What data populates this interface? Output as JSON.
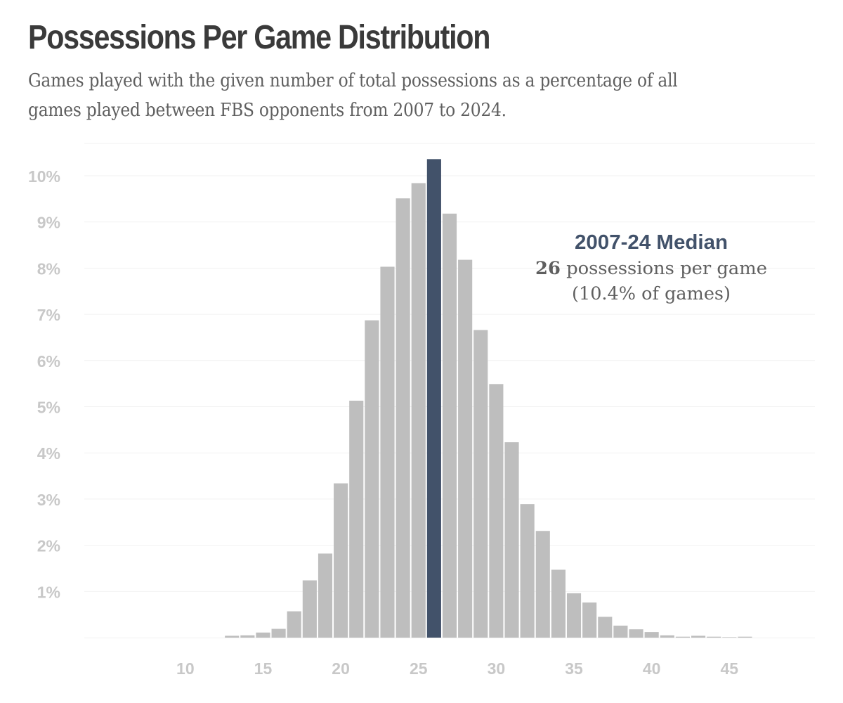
{
  "header": {
    "title": "Possessions Per Game Distribution",
    "subtitle": "Games played with the given number of total possessions as a percentage of all games played between FBS opponents from 2007 to 2024."
  },
  "colors": {
    "bar": "#bebebe",
    "highlight": "#42526a",
    "axis_text": "#c8c8c8",
    "grid": "#f1f1f1",
    "annotation_text": "#5f5f5f"
  },
  "chart_data": {
    "type": "bar",
    "title": "Possessions Per Game Distribution",
    "xlabel": "",
    "ylabel": "",
    "x_range": [
      3.5,
      50.5
    ],
    "ylim": [
      0,
      10.7
    ],
    "x_ticks": [
      10,
      15,
      20,
      25,
      30,
      35,
      40,
      45
    ],
    "y_ticks": [
      1,
      2,
      3,
      4,
      5,
      6,
      7,
      8,
      9,
      10
    ],
    "y_tick_labels": [
      "1%",
      "2%",
      "3%",
      "4%",
      "5%",
      "6%",
      "7%",
      "8%",
      "9%",
      "10%"
    ],
    "grid": true,
    "highlight_x": 26,
    "x": [
      13,
      14,
      15,
      16,
      17,
      18,
      19,
      20,
      21,
      22,
      23,
      24,
      25,
      26,
      27,
      28,
      29,
      30,
      31,
      32,
      33,
      34,
      35,
      36,
      37,
      38,
      39,
      40,
      41,
      42,
      43,
      44,
      45,
      46
    ],
    "values": [
      0.04,
      0.05,
      0.11,
      0.19,
      0.57,
      1.24,
      1.82,
      3.34,
      5.13,
      6.87,
      8.03,
      9.51,
      9.84,
      10.36,
      9.18,
      8.18,
      6.66,
      5.49,
      4.23,
      2.89,
      2.31,
      1.47,
      0.96,
      0.76,
      0.45,
      0.26,
      0.18,
      0.12,
      0.05,
      0.02,
      0.04,
      0.02,
      0.01,
      0.02
    ],
    "annotation": {
      "heading": "2007-24 Median",
      "value": "26",
      "line1_rest": " possessions per game",
      "line2": "(10.4% of games)"
    }
  }
}
